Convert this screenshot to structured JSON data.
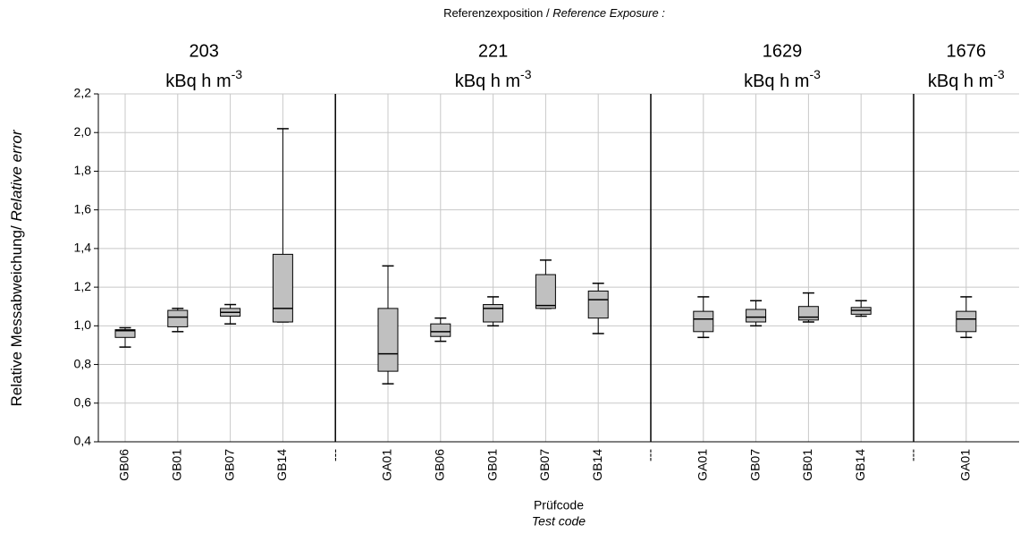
{
  "chart_data": {
    "type": "box",
    "top_label": "Referenzexposition / ",
    "top_label_italic": "Reference Exposure :",
    "y_label": "Relative Messabweichung/ ",
    "y_label_italic": "Relative error",
    "x_label": "Prüfcode",
    "x_label_italic": "Test code",
    "groups": [
      {
        "label": "203",
        "unit": "kBq h m",
        "exponent": "-3"
      },
      {
        "label": "221",
        "unit": "kBq h m",
        "exponent": "-3"
      },
      {
        "label": "1629",
        "unit": "kBq h m",
        "exponent": "-3"
      },
      {
        "label": "1676",
        "unit": "kBq h m",
        "exponent": "-3"
      }
    ],
    "categories": [
      "GB06",
      "GB01",
      "GB07",
      "GB14",
      "---",
      "GA01",
      "GB06",
      "GB01",
      "GB07",
      "GB14",
      "---",
      "GA01",
      "GB07",
      "GB01",
      "GB14",
      "---",
      "GA01"
    ],
    "boxes": [
      {
        "min": 0.89,
        "q1": 0.94,
        "median": 0.975,
        "q3": 0.98,
        "max": 0.99
      },
      {
        "min": 0.97,
        "q1": 0.995,
        "median": 1.045,
        "q3": 1.08,
        "max": 1.09
      },
      {
        "min": 1.01,
        "q1": 1.05,
        "median": 1.07,
        "q3": 1.09,
        "max": 1.11
      },
      {
        "min": 1.02,
        "q1": 1.02,
        "median": 1.09,
        "q3": 1.37,
        "max": 2.02
      },
      null,
      {
        "min": 0.7,
        "q1": 0.765,
        "median": 0.855,
        "q3": 1.09,
        "max": 1.31
      },
      {
        "min": 0.92,
        "q1": 0.945,
        "median": 0.97,
        "q3": 1.01,
        "max": 1.04
      },
      {
        "min": 1.0,
        "q1": 1.02,
        "median": 1.09,
        "q3": 1.11,
        "max": 1.15
      },
      {
        "min": 1.09,
        "q1": 1.09,
        "median": 1.105,
        "q3": 1.265,
        "max": 1.34
      },
      {
        "min": 0.96,
        "q1": 1.04,
        "median": 1.135,
        "q3": 1.18,
        "max": 1.22
      },
      null,
      {
        "min": 0.94,
        "q1": 0.97,
        "median": 1.035,
        "q3": 1.075,
        "max": 1.15
      },
      {
        "min": 1.0,
        "q1": 1.02,
        "median": 1.045,
        "q3": 1.085,
        "max": 1.13
      },
      {
        "min": 1.02,
        "q1": 1.03,
        "median": 1.045,
        "q3": 1.1,
        "max": 1.17
      },
      {
        "min": 1.05,
        "q1": 1.06,
        "median": 1.08,
        "q3": 1.095,
        "max": 1.13
      },
      null,
      {
        "min": 0.94,
        "q1": 0.97,
        "median": 1.035,
        "q3": 1.075,
        "max": 1.15
      }
    ],
    "color": "#c0c0c0",
    "ylim": [
      0.4,
      2.2
    ],
    "yticks": [
      {
        "value": 0.4,
        "label": "0,4"
      },
      {
        "value": 0.6,
        "label": "0,6"
      },
      {
        "value": 0.8,
        "label": "0,8"
      },
      {
        "value": 1.0,
        "label": "1,0"
      },
      {
        "value": 1.2,
        "label": "1,2"
      },
      {
        "value": 1.4,
        "label": "1,4"
      },
      {
        "value": 1.6,
        "label": "1,6"
      },
      {
        "value": 1.8,
        "label": "1,8"
      },
      {
        "value": 2.0,
        "label": "2,0"
      },
      {
        "value": 2.2,
        "label": "2,2"
      }
    ],
    "grid": true
  }
}
